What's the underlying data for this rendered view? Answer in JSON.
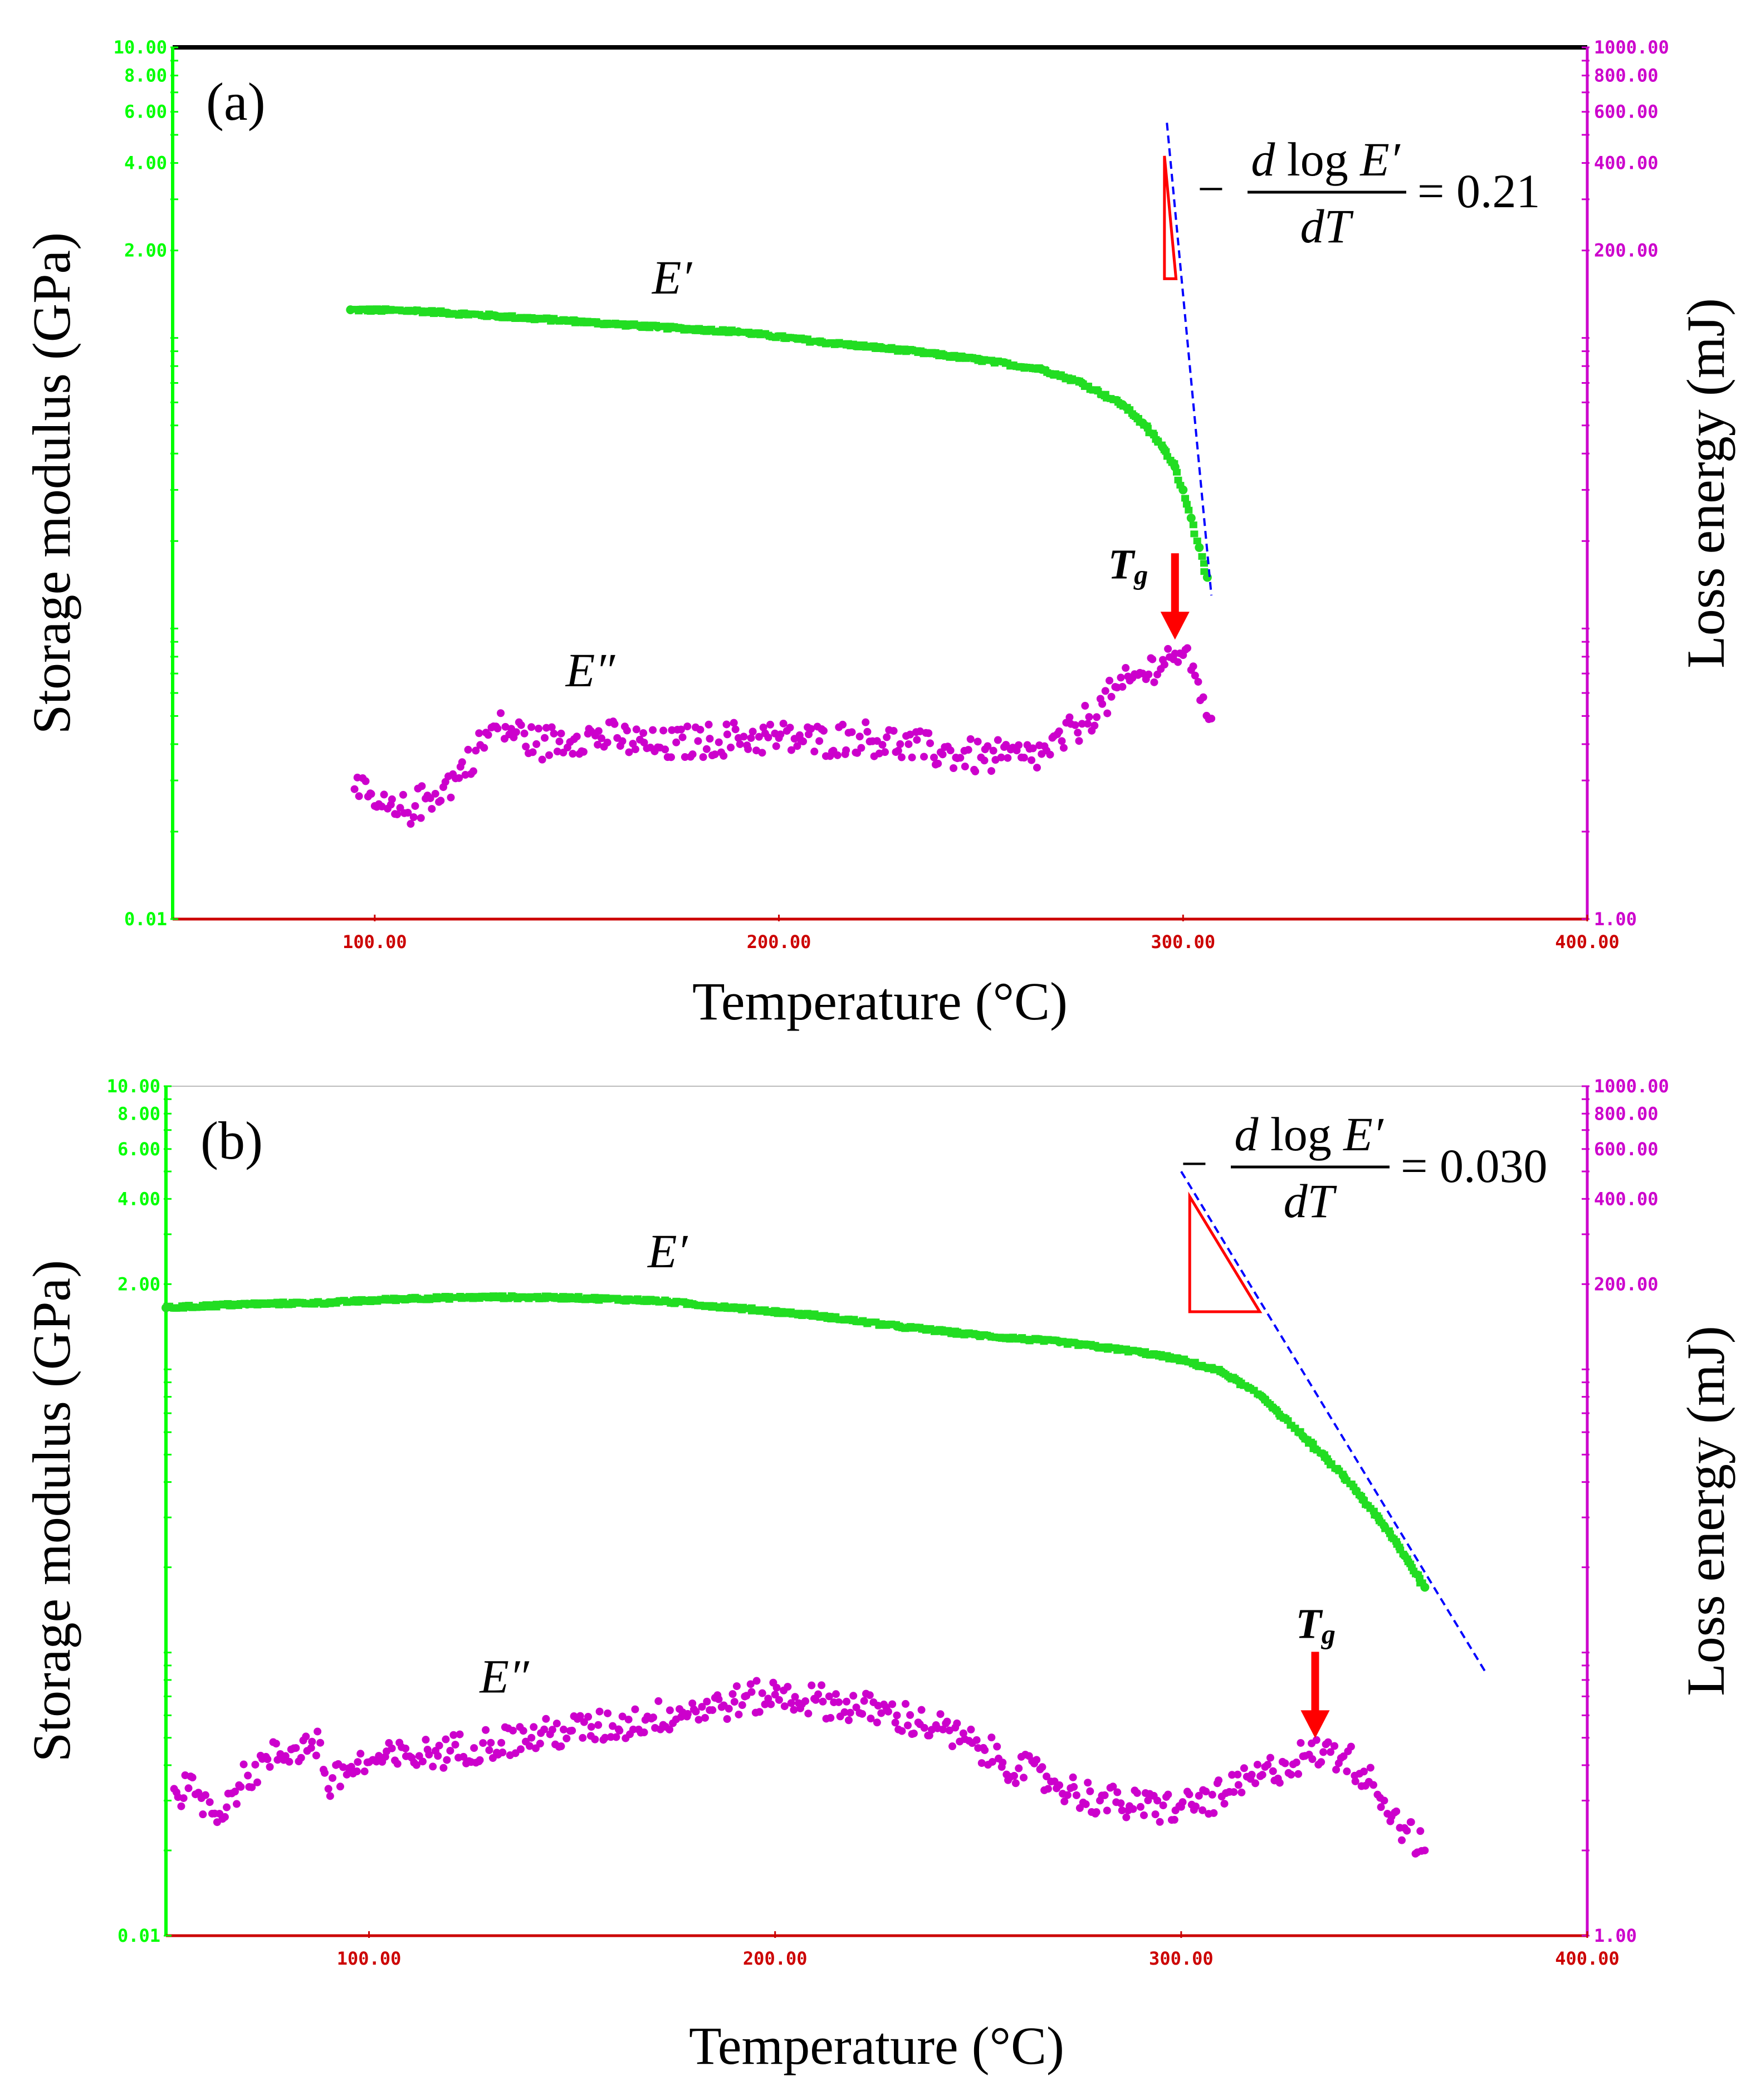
{
  "chart_data": [
    {
      "type": "scatter",
      "panel_label": "(a)",
      "xlabel": "Temperature (°C)",
      "ylabel_left": "Storage modulus (GPa)",
      "ylabel_right": "Loss energy (mJ)",
      "xlim": [
        50,
        400
      ],
      "ylim_left": [
        0.01,
        10
      ],
      "ylim_right": [
        1,
        1000
      ],
      "x_ticks": [
        "100.00",
        "200.00",
        "300.00",
        "400.00"
      ],
      "x_tick_values": [
        100,
        200,
        300,
        400
      ],
      "y_left_ticks": [
        "10.00",
        "8.00",
        "6.00",
        "4.00",
        "2.00",
        "0.01"
      ],
      "y_left_tick_values": [
        10,
        8,
        6,
        4,
        2,
        0.01
      ],
      "y_right_ticks": [
        "1000.00",
        "800.00",
        "600.00",
        "400.00",
        "200.00",
        "1.00"
      ],
      "y_right_tick_values": [
        1000,
        800,
        600,
        400,
        200,
        1
      ],
      "colors": {
        "left_axis": "#00ff00",
        "right_axis": "#cc00cc",
        "x_axis": "#cc0000",
        "storage": "#22dd22",
        "loss": "#cc00cc",
        "arrow": "#ff0000",
        "slope_line": "#0000ff",
        "triangle": "#ff0000"
      },
      "series": [
        {
          "name": "E′",
          "axis": "left",
          "x": [
            94,
            110,
            130,
            150,
            170,
            190,
            210,
            230,
            250,
            265,
            275,
            285,
            290,
            295,
            298,
            300,
            302,
            304,
            306
          ],
          "y": [
            1.25,
            1.24,
            1.19,
            1.14,
            1.09,
            1.05,
            0.97,
            0.91,
            0.84,
            0.78,
            0.7,
            0.59,
            0.51,
            0.42,
            0.36,
            0.3,
            0.24,
            0.19,
            0.15
          ]
        },
        {
          "name": "E″",
          "axis": "right",
          "x": [
            95,
            100,
            105,
            110,
            115,
            120,
            125,
            130,
            135,
            140,
            150,
            160,
            170,
            180,
            190,
            200,
            210,
            220,
            230,
            240,
            250,
            255,
            260,
            265,
            270,
            275,
            280,
            285,
            290,
            295,
            298,
            300,
            302,
            305,
            307
          ],
          "y": [
            2.8,
            2.45,
            2.3,
            2.45,
            2.7,
            3.05,
            3.8,
            4.6,
            4.4,
            4.0,
            4.25,
            4.2,
            3.9,
            4.1,
            4.2,
            4.2,
            4.1,
            4.25,
            4.0,
            3.75,
            3.6,
            3.6,
            3.6,
            3.7,
            4.1,
            4.7,
            5.5,
            6.3,
            7.0,
            7.8,
            8.2,
            8.1,
            7.2,
            5.8,
            4.9
          ]
        }
      ],
      "annotations": {
        "storage_label": "E′",
        "loss_label": "E″",
        "tg_label": "T",
        "tg_sub": "g",
        "tg_x": 298,
        "slope_minus": "−",
        "slope_num_d": "d",
        "slope_num_log": " log ",
        "slope_num_E": "E′",
        "slope_den": "dT",
        "slope_eq": "= 0.21",
        "slope_line_x": [
          296,
          307
        ],
        "slope_line_y": [
          5.5,
          0.13
        ]
      }
    },
    {
      "type": "scatter",
      "panel_label": "(b)",
      "xlabel": "Temperature (°C)",
      "ylabel_left": "Storage modulus (GPa)",
      "ylabel_right": "Loss energy (mJ)",
      "xlim": [
        50,
        400
      ],
      "ylim_left": [
        0.01,
        10
      ],
      "ylim_right": [
        1,
        1000
      ],
      "x_ticks": [
        "100.00",
        "200.00",
        "300.00",
        "400.00"
      ],
      "x_tick_values": [
        100,
        200,
        300,
        400
      ],
      "y_left_ticks": [
        "10.00",
        "8.00",
        "6.00",
        "4.00",
        "2.00",
        "0.01"
      ],
      "y_left_tick_values": [
        10,
        8,
        6,
        4,
        2,
        0.01
      ],
      "y_right_ticks": [
        "1000.00",
        "800.00",
        "600.00",
        "400.00",
        "200.00",
        "1.00"
      ],
      "y_right_tick_values": [
        1000,
        800,
        600,
        400,
        200,
        1
      ],
      "colors": {
        "left_axis": "#00ff00",
        "right_axis": "#cc00cc",
        "x_axis": "#cc0000",
        "storage": "#22dd22",
        "loss": "#cc00cc",
        "arrow": "#ff0000",
        "slope_line": "#0000ff",
        "triangle": "#ff0000"
      },
      "series": [
        {
          "name": "E′",
          "axis": "left",
          "x": [
            50,
            70,
            90,
            110,
            130,
            150,
            170,
            190,
            210,
            230,
            250,
            270,
            290,
            300,
            310,
            320,
            330,
            340,
            350,
            355,
            360
          ],
          "y": [
            1.65,
            1.7,
            1.72,
            1.78,
            1.8,
            1.79,
            1.75,
            1.65,
            1.55,
            1.42,
            1.32,
            1.25,
            1.15,
            1.08,
            0.98,
            0.8,
            0.58,
            0.42,
            0.28,
            0.22,
            0.17
          ]
        },
        {
          "name": "E″",
          "axis": "right",
          "x": [
            52,
            58,
            62,
            68,
            75,
            82,
            88,
            90,
            95,
            100,
            110,
            120,
            130,
            140,
            150,
            160,
            170,
            180,
            190,
            200,
            210,
            220,
            230,
            240,
            250,
            260,
            270,
            280,
            290,
            300,
            310,
            320,
            330,
            335,
            340,
            345,
            350,
            355,
            360
          ],
          "y": [
            3.3,
            3.2,
            2.7,
            3.4,
            4.2,
            4.6,
            4.8,
            3.3,
            3.9,
            4.1,
            4.3,
            4.5,
            4.8,
            5.0,
            5.3,
            5.5,
            5.9,
            6.3,
            6.7,
            7.1,
            6.8,
            6.4,
            6.0,
            5.4,
            4.6,
            3.9,
            3.4,
            3.0,
            2.85,
            2.85,
            3.1,
            3.7,
            4.3,
            4.45,
            4.3,
            3.8,
            3.0,
            2.4,
            2.0
          ]
        }
      ],
      "annotations": {
        "storage_label": "E′",
        "loss_label": "E″",
        "tg_label": "T",
        "tg_sub": "g",
        "tg_x": 333,
        "slope_minus": "−",
        "slope_num_d": "d",
        "slope_num_log": " log ",
        "slope_num_E": "E′",
        "slope_den": "dT",
        "slope_eq": "= 0.030",
        "slope_line_x": [
          300,
          375
        ],
        "slope_line_y": [
          5.0,
          0.085
        ]
      }
    }
  ]
}
